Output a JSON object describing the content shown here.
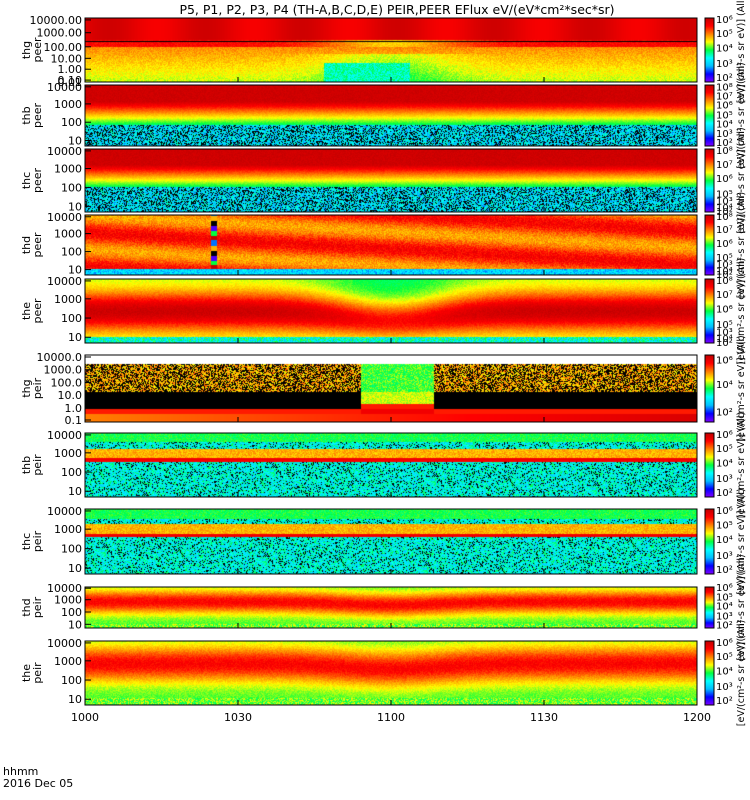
{
  "chart_data": {
    "type": "heatmap",
    "title": "P5, P1, P2, P3, P4 (TH-A,B,C,D,E) PEIR,PEER EFlux eV/(eV*cm²*sec*sr)",
    "time_label": "hhmm",
    "date_label": "2016 Dec 05",
    "x_ticks": [
      "1000",
      "1030",
      "1100",
      "1130",
      "1200"
    ],
    "x_range": [
      "1000",
      "1200"
    ],
    "colorbar_label": "[eV/(cm²-s sr eV)] (All)",
    "colormap": [
      "#7f00ff",
      "#0000ff",
      "#00bfff",
      "#00ffff",
      "#00ff40",
      "#ffff00",
      "#ff8000",
      "#ff0000",
      "#c00000"
    ],
    "panels": [
      {
        "probe": "thg",
        "species": "peer",
        "ylabel_top": "thg",
        "ylabel_bottom": "peer",
        "ytick_labels": [
          "10000.00",
          "1000.00",
          "100.00",
          "10.00",
          "1.00",
          "0.10",
          "0.01"
        ],
        "cb_ticks": [
          "10⁶",
          "10⁵",
          "10⁴",
          "10³",
          "10²"
        ]
      },
      {
        "probe": "thb",
        "species": "peer",
        "ylabel_top": "thb",
        "ylabel_bottom": "peer",
        "ytick_labels": [
          "10000",
          "1000",
          "100",
          "10"
        ],
        "cb_ticks": [
          "10⁸",
          "10⁷",
          "10⁶",
          "10⁵",
          "10⁴",
          "10³",
          "10²"
        ]
      },
      {
        "probe": "thc",
        "species": "peer",
        "ylabel_top": "thc",
        "ylabel_bottom": "peer",
        "ytick_labels": [
          "10000",
          "1000",
          "100",
          "10"
        ],
        "cb_ticks": [
          "10⁸",
          "10⁷",
          "10⁶",
          "10⁵",
          "10⁴",
          "10³",
          "10²"
        ]
      },
      {
        "probe": "thd",
        "species": "peer",
        "ylabel_top": "thd",
        "ylabel_bottom": "peer",
        "ytick_labels": [
          "10000",
          "1000",
          "100",
          "10"
        ],
        "cb_ticks": [
          "10⁸",
          "10⁷",
          "10⁶",
          "10⁵",
          "10⁴",
          "10³",
          "10²"
        ]
      },
      {
        "probe": "the",
        "species": "peer",
        "ylabel_top": "the",
        "ylabel_bottom": "peer",
        "ytick_labels": [
          "10000",
          "1000",
          "100",
          "10"
        ],
        "cb_ticks": [
          "10⁸",
          "10⁷",
          "10⁶",
          "10⁵",
          "10⁴",
          "10³",
          "10²"
        ]
      },
      {
        "probe": "thg",
        "species": "peir",
        "ylabel_top": "thg",
        "ylabel_bottom": "peir",
        "ytick_labels": [
          "10000.0",
          "1000.0",
          "100.0",
          "10.0",
          "1.0",
          "0.1"
        ],
        "cb_ticks": [
          "10⁶",
          "10⁴",
          "10²"
        ]
      },
      {
        "probe": "thb",
        "species": "peir",
        "ylabel_top": "thb",
        "ylabel_bottom": "peir",
        "ytick_labels": [
          "10000",
          "1000",
          "100",
          "10"
        ],
        "cb_ticks": [
          "10⁶",
          "10⁵",
          "10⁴",
          "10³",
          "10²"
        ]
      },
      {
        "probe": "thc",
        "species": "peir",
        "ylabel_top": "thc",
        "ylabel_bottom": "peir",
        "ytick_labels": [
          "10000",
          "1000",
          "100",
          "10"
        ],
        "cb_ticks": [
          "10⁶",
          "10⁵",
          "10⁴",
          "10³",
          "10²"
        ]
      },
      {
        "probe": "thd",
        "species": "peir",
        "ylabel_top": "thd",
        "ylabel_bottom": "peir",
        "ytick_labels": [
          "10000",
          "1000",
          "100",
          "10"
        ],
        "cb_ticks": [
          "10⁶",
          "10⁵",
          "10⁴",
          "10³",
          "10²"
        ]
      },
      {
        "probe": "the",
        "species": "peir",
        "ylabel_top": "the",
        "ylabel_bottom": "peir",
        "ytick_labels": [
          "10000",
          "1000",
          "100",
          "10"
        ],
        "cb_ticks": [
          "10⁶",
          "10⁵",
          "10⁴",
          "10³",
          "10²"
        ]
      }
    ]
  }
}
